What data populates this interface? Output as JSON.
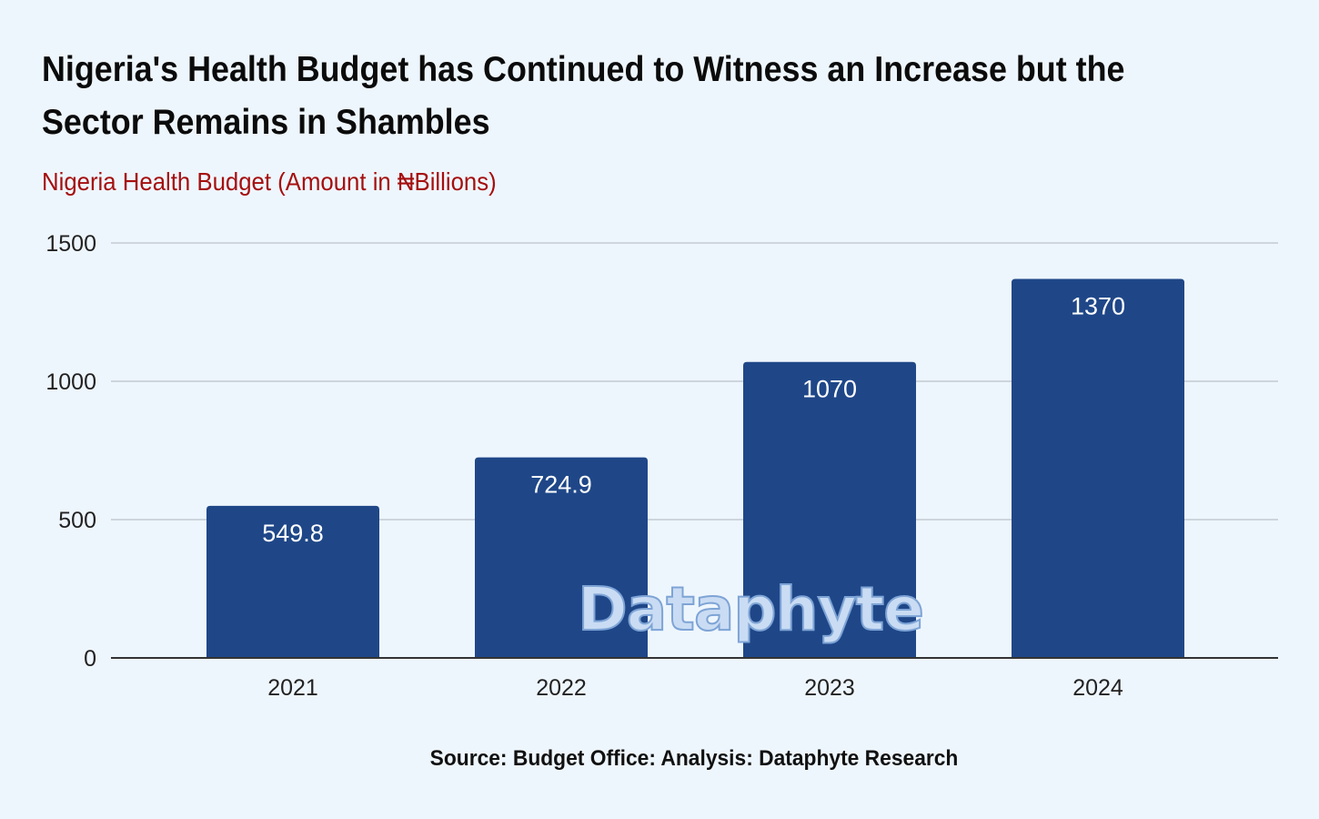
{
  "chart_data": {
    "type": "bar",
    "title": "Nigeria's Health Budget has Continued to Witness an Increase but the Sector Remains in Shambles",
    "subtitle": "Nigeria Health Budget (Amount in ₦Billions)",
    "categories": [
      "2021",
      "2022",
      "2023",
      "2024"
    ],
    "values": [
      549.8,
      724.9,
      1070,
      1370
    ],
    "value_labels": [
      "549.8",
      "724.9",
      "1070",
      "1370"
    ],
    "y_ticks": [
      0,
      500,
      1000,
      1500
    ],
    "ylim": [
      0,
      1500
    ],
    "grid": true,
    "legend": "none",
    "bar_color": "#1f4788",
    "source": "Source: Budget Office: Analysis: Dataphyte Research",
    "watermark": "Dataphyte"
  },
  "colors": {
    "background": "#eef6fd",
    "title": "#0b0b0b",
    "subtitle": "#a50f0f",
    "bar": "#1f4788",
    "gridline": "#c4cad1",
    "axis": "#333333"
  }
}
